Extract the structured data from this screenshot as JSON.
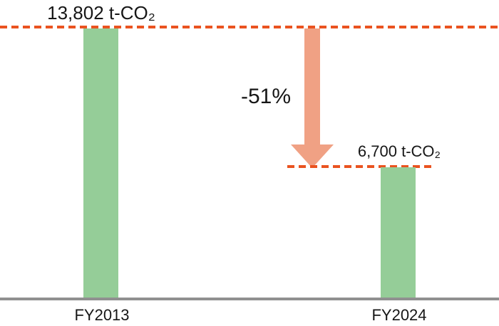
{
  "chart_data": {
    "type": "bar",
    "categories": [
      "FY2013",
      "FY2024"
    ],
    "values": [
      13802,
      6700
    ],
    "value_labels": [
      "13,802 t-CO₂",
      "6,700 t-CO₂"
    ],
    "unit": "t-CO₂",
    "change_label": "-51%",
    "title": "",
    "xlabel": "",
    "ylabel": "",
    "ylim": [
      0,
      13802
    ],
    "grid": false,
    "legend": "none",
    "annotations": {
      "baseline_guide": "dashed line at 13,802 t-CO₂ level (full width)",
      "reduced_guide": "dashed line at 6,700 t-CO₂ level",
      "arrow": "downward arrow from 13,802 level to 6,700 level labeled -51%"
    },
    "colors": {
      "bar": "#95CD98",
      "arrow": "#F0A184",
      "dashed_line": "#EA5320",
      "axis": "#909090",
      "text": "#161616",
      "background": "#FFFFFF"
    }
  }
}
